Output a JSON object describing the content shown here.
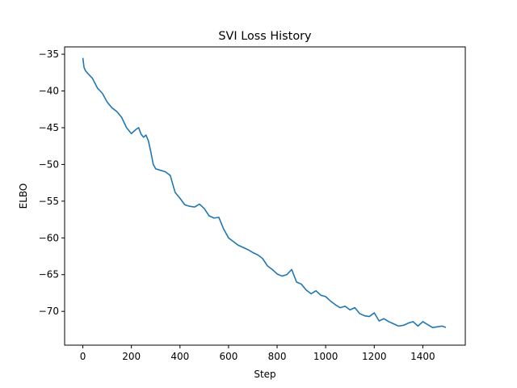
{
  "chart_data": {
    "type": "line",
    "title": "SVI Loss History",
    "xlabel": "Step",
    "ylabel": "ELBO",
    "xlim": [
      -75,
      1575
    ],
    "ylim": [
      -74.6,
      -34.0
    ],
    "xticks": [
      0,
      200,
      400,
      600,
      800,
      1000,
      1200,
      1400
    ],
    "yticks": [
      -35,
      -40,
      -45,
      -50,
      -55,
      -60,
      -65,
      -70
    ],
    "grid": false,
    "legend": "none",
    "series": [
      {
        "color": "#1f77b4",
        "x": [
          0,
          5,
          10,
          20,
          40,
          60,
          80,
          100,
          120,
          140,
          160,
          180,
          200,
          220,
          230,
          240,
          250,
          260,
          270,
          280,
          290,
          300,
          320,
          340,
          360,
          380,
          400,
          420,
          440,
          460,
          480,
          500,
          520,
          540,
          560,
          580,
          600,
          620,
          640,
          660,
          680,
          700,
          720,
          740,
          760,
          780,
          800,
          820,
          840,
          860,
          880,
          900,
          920,
          940,
          960,
          980,
          1000,
          1020,
          1040,
          1060,
          1080,
          1100,
          1120,
          1140,
          1160,
          1180,
          1200,
          1220,
          1240,
          1260,
          1280,
          1300,
          1320,
          1340,
          1360,
          1380,
          1400,
          1420,
          1440,
          1460,
          1480,
          1495
        ],
        "values": [
          -35.5,
          -36.8,
          -37.2,
          -37.6,
          -38.3,
          -39.6,
          -40.3,
          -41.5,
          -42.3,
          -42.8,
          -43.6,
          -45.0,
          -45.8,
          -45.2,
          -45.0,
          -45.9,
          -46.3,
          -46.0,
          -46.8,
          -48.3,
          -50.0,
          -50.6,
          -50.8,
          -51.0,
          -51.5,
          -53.8,
          -54.6,
          -55.5,
          -55.7,
          -55.8,
          -55.4,
          -56.0,
          -57.0,
          -57.3,
          -57.2,
          -58.8,
          -60.0,
          -60.5,
          -61.0,
          -61.3,
          -61.6,
          -62.0,
          -62.3,
          -62.8,
          -63.8,
          -64.3,
          -64.9,
          -65.2,
          -65.0,
          -64.3,
          -66.0,
          -66.3,
          -67.1,
          -67.6,
          -67.2,
          -67.8,
          -68.0,
          -68.6,
          -69.1,
          -69.5,
          -69.3,
          -69.8,
          -69.5,
          -70.3,
          -70.6,
          -70.7,
          -70.2,
          -71.3,
          -71.0,
          -71.4,
          -71.7,
          -72.0,
          -71.9,
          -71.6,
          -71.4,
          -72.0,
          -71.4,
          -71.8,
          -72.2,
          -72.1,
          -72.0,
          -72.2
        ]
      }
    ]
  }
}
